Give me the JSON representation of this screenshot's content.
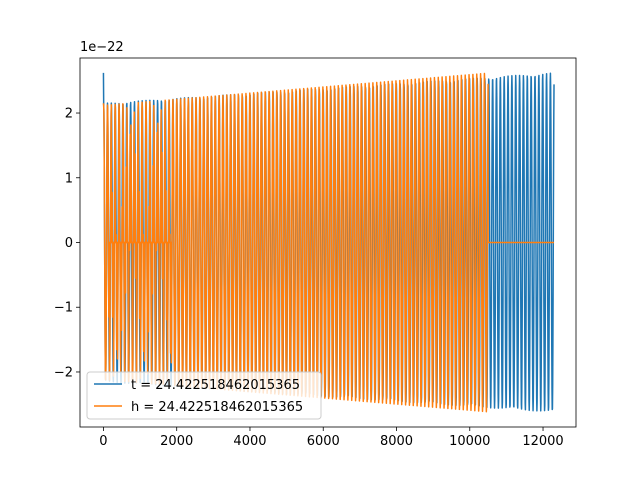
{
  "chart_data": {
    "type": "line",
    "title": "",
    "xlabel": "",
    "ylabel": "",
    "y_scale_label": "1e−22",
    "xlim": [
      -640,
      12900
    ],
    "ylim": [
      -2.85,
      2.85
    ],
    "xticks": [
      0,
      2000,
      4000,
      6000,
      8000,
      10000,
      12000
    ],
    "xtick_labels": [
      "0",
      "2000",
      "4000",
      "6000",
      "8000",
      "10000",
      "12000"
    ],
    "yticks": [
      -2,
      -1,
      0,
      1,
      2
    ],
    "ytick_labels": [
      "−2",
      "−1",
      "0",
      "1",
      "2"
    ],
    "grid": false,
    "legend_position": "lower-left",
    "series": [
      {
        "name": "t = 24.422518462015365",
        "color": "#1f77b4",
        "x_start": 0,
        "x_end": 12300,
        "cycles": 117,
        "amplitude_start": 2.15,
        "amplitude_end": 2.62,
        "initial_spike": 2.62,
        "zero_gap": []
      },
      {
        "name": "h = 24.422518462015365",
        "color": "#ff7f0e",
        "x_start": 0,
        "x_end": 10500,
        "x_flat_end": 12300,
        "cycles": 100,
        "amplitude_start": 2.12,
        "amplitude_end": 2.62,
        "initial_spike": 2.15,
        "zero_gap": [
          150,
          1850
        ]
      }
    ]
  }
}
